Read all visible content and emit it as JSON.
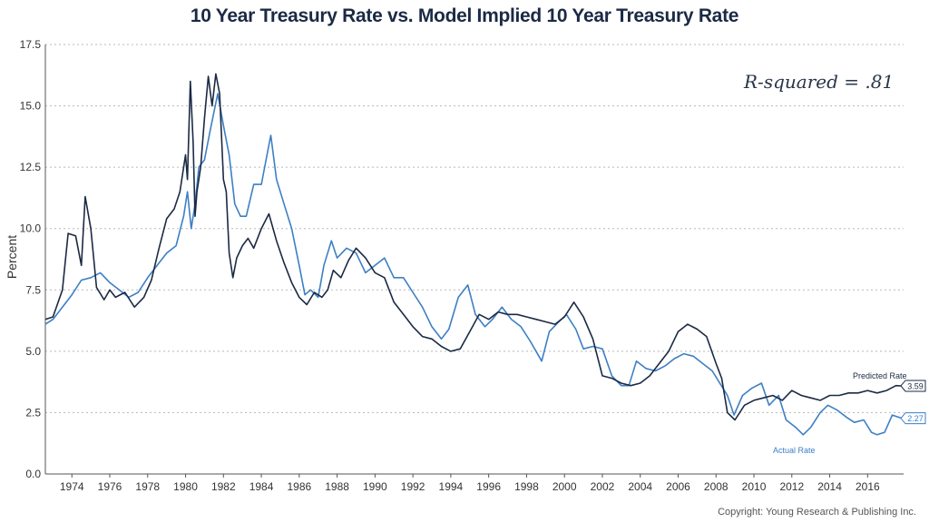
{
  "chart_data": {
    "type": "line",
    "title": "10 Year Treasury Rate vs. Model Implied 10 Year Treasury Rate",
    "ylabel": "Percent",
    "xlabel": "",
    "ylim": [
      0,
      17.5
    ],
    "xlim": [
      1972.6,
      2017.9
    ],
    "yticks": [
      "0.0",
      "2.5",
      "5.0",
      "7.5",
      "10.0",
      "12.5",
      "15.0",
      "17.5"
    ],
    "xticks": [
      "1974",
      "1976",
      "1978",
      "1980",
      "1982",
      "1984",
      "1986",
      "1988",
      "1990",
      "1992",
      "1994",
      "1996",
      "1998",
      "2000",
      "2002",
      "2004",
      "2006",
      "2008",
      "2010",
      "2012",
      "2014",
      "2016"
    ],
    "grid": "horizontal dotted",
    "annotation": "R-squared = .81",
    "series": [
      {
        "name": "Predicted Rate",
        "color": "#1b2a44",
        "end_value": "3.59",
        "x": [
          1972.6,
          1973.0,
          1973.5,
          1973.8,
          1974.2,
          1974.5,
          1974.7,
          1975.0,
          1975.3,
          1975.7,
          1976.0,
          1976.3,
          1976.8,
          1977.3,
          1977.8,
          1978.2,
          1978.6,
          1979.0,
          1979.4,
          1979.7,
          1980.0,
          1980.1,
          1980.25,
          1980.4,
          1980.5,
          1980.6,
          1980.8,
          1981.0,
          1981.2,
          1981.4,
          1981.6,
          1981.8,
          1982.0,
          1982.15,
          1982.3,
          1982.5,
          1982.7,
          1983.0,
          1983.3,
          1983.6,
          1984.0,
          1984.4,
          1984.8,
          1985.2,
          1985.6,
          1986.0,
          1986.4,
          1986.8,
          1987.2,
          1987.5,
          1987.8,
          1988.2,
          1988.6,
          1989.0,
          1989.5,
          1990.0,
          1990.5,
          1991.0,
          1991.5,
          1992.0,
          1992.5,
          1993.0,
          1993.5,
          1994.0,
          1994.5,
          1995.0,
          1995.5,
          1996.0,
          1996.5,
          1997.0,
          1997.5,
          1998.0,
          1998.5,
          1999.0,
          1999.5,
          2000.0,
          2000.5,
          2001.0,
          2001.5,
          2002.0,
          2002.5,
          2003.0,
          2003.5,
          2004.0,
          2004.5,
          2005.0,
          2005.5,
          2006.0,
          2006.5,
          2007.0,
          2007.5,
          2008.0,
          2008.3,
          2008.6,
          2009.0,
          2009.5,
          2010.0,
          2010.5,
          2011.0,
          2011.5,
          2012.0,
          2012.5,
          2013.0,
          2013.5,
          2014.0,
          2014.5,
          2015.0,
          2015.5,
          2016.0,
          2016.5,
          2017.0,
          2017.5,
          2017.8
        ],
        "y": [
          6.3,
          6.4,
          7.5,
          9.8,
          9.7,
          8.5,
          11.3,
          10.0,
          7.6,
          7.1,
          7.5,
          7.2,
          7.4,
          6.8,
          7.2,
          7.9,
          9.2,
          10.4,
          10.8,
          11.5,
          13.0,
          12.0,
          16.0,
          13.5,
          10.5,
          11.5,
          12.5,
          14.5,
          16.2,
          15.0,
          16.3,
          15.5,
          12.0,
          11.5,
          9.0,
          8.0,
          8.8,
          9.3,
          9.6,
          9.2,
          10.0,
          10.6,
          9.5,
          8.6,
          7.8,
          7.2,
          6.9,
          7.4,
          7.2,
          7.5,
          8.3,
          8.0,
          8.7,
          9.2,
          8.8,
          8.2,
          8.0,
          7.0,
          6.5,
          6.0,
          5.6,
          5.5,
          5.2,
          5.0,
          5.1,
          5.8,
          6.5,
          6.3,
          6.6,
          6.5,
          6.5,
          6.4,
          6.3,
          6.2,
          6.1,
          6.4,
          7.0,
          6.4,
          5.5,
          4.0,
          3.9,
          3.7,
          3.6,
          3.7,
          4.0,
          4.5,
          5.0,
          5.8,
          6.1,
          5.9,
          5.6,
          4.5,
          3.9,
          2.5,
          2.2,
          2.8,
          3.0,
          3.1,
          3.2,
          3.0,
          3.4,
          3.2,
          3.1,
          3.0,
          3.2,
          3.2,
          3.3,
          3.3,
          3.4,
          3.3,
          3.4,
          3.6,
          3.59
        ]
      },
      {
        "name": "Actual Rate",
        "color": "#3d7fc4",
        "end_value": "2.27",
        "x": [
          1972.6,
          1973.0,
          1973.5,
          1974.0,
          1974.5,
          1975.0,
          1975.5,
          1976.0,
          1976.5,
          1977.0,
          1977.5,
          1978.0,
          1978.5,
          1979.0,
          1979.5,
          1979.9,
          1980.1,
          1980.3,
          1980.5,
          1980.7,
          1981.0,
          1981.3,
          1981.7,
          1982.0,
          1982.3,
          1982.6,
          1982.9,
          1983.2,
          1983.6,
          1984.0,
          1984.3,
          1984.5,
          1984.8,
          1985.2,
          1985.6,
          1986.0,
          1986.3,
          1986.6,
          1987.0,
          1987.3,
          1987.7,
          1988.0,
          1988.5,
          1989.0,
          1989.5,
          1990.0,
          1990.5,
          1991.0,
          1991.5,
          1992.0,
          1992.5,
          1993.0,
          1993.5,
          1993.9,
          1994.4,
          1994.9,
          1995.3,
          1995.8,
          1996.2,
          1996.7,
          1997.2,
          1997.7,
          1998.2,
          1998.8,
          1999.2,
          1999.7,
          2000.1,
          2000.6,
          2001.0,
          2001.5,
          2002.0,
          2002.5,
          2003.0,
          2003.4,
          2003.8,
          2004.3,
          2004.8,
          2005.3,
          2005.8,
          2006.3,
          2006.8,
          2007.3,
          2007.8,
          2008.2,
          2008.6,
          2008.95,
          2009.4,
          2009.9,
          2010.4,
          2010.8,
          2011.3,
          2011.7,
          2012.2,
          2012.6,
          2013.0,
          2013.5,
          2013.9,
          2014.4,
          2014.9,
          2015.3,
          2015.8,
          2016.2,
          2016.5,
          2016.9,
          2017.3,
          2017.8
        ],
        "y": [
          6.1,
          6.3,
          6.8,
          7.3,
          7.9,
          8.0,
          8.2,
          7.8,
          7.5,
          7.2,
          7.4,
          8.0,
          8.5,
          9.0,
          9.3,
          10.5,
          11.5,
          10.0,
          11.0,
          12.5,
          12.8,
          14.0,
          15.5,
          14.2,
          13.0,
          11.0,
          10.5,
          10.5,
          11.8,
          11.8,
          13.0,
          13.8,
          12.0,
          11.0,
          10.0,
          8.5,
          7.3,
          7.5,
          7.2,
          8.5,
          9.5,
          8.8,
          9.2,
          9.0,
          8.2,
          8.5,
          8.8,
          8.0,
          8.0,
          7.4,
          6.8,
          6.0,
          5.5,
          5.9,
          7.2,
          7.7,
          6.5,
          6.0,
          6.3,
          6.8,
          6.3,
          6.0,
          5.4,
          4.6,
          5.8,
          6.2,
          6.5,
          5.9,
          5.1,
          5.2,
          5.1,
          4.0,
          3.6,
          3.6,
          4.6,
          4.3,
          4.2,
          4.4,
          4.7,
          4.9,
          4.8,
          4.5,
          4.2,
          3.7,
          3.2,
          2.4,
          3.2,
          3.5,
          3.7,
          2.8,
          3.2,
          2.2,
          1.9,
          1.6,
          1.9,
          2.5,
          2.8,
          2.6,
          2.3,
          2.1,
          2.2,
          1.7,
          1.6,
          1.7,
          2.4,
          2.27
        ]
      }
    ]
  },
  "footer": {
    "copyright": "Copyright: Young Research & Publishing Inc."
  }
}
